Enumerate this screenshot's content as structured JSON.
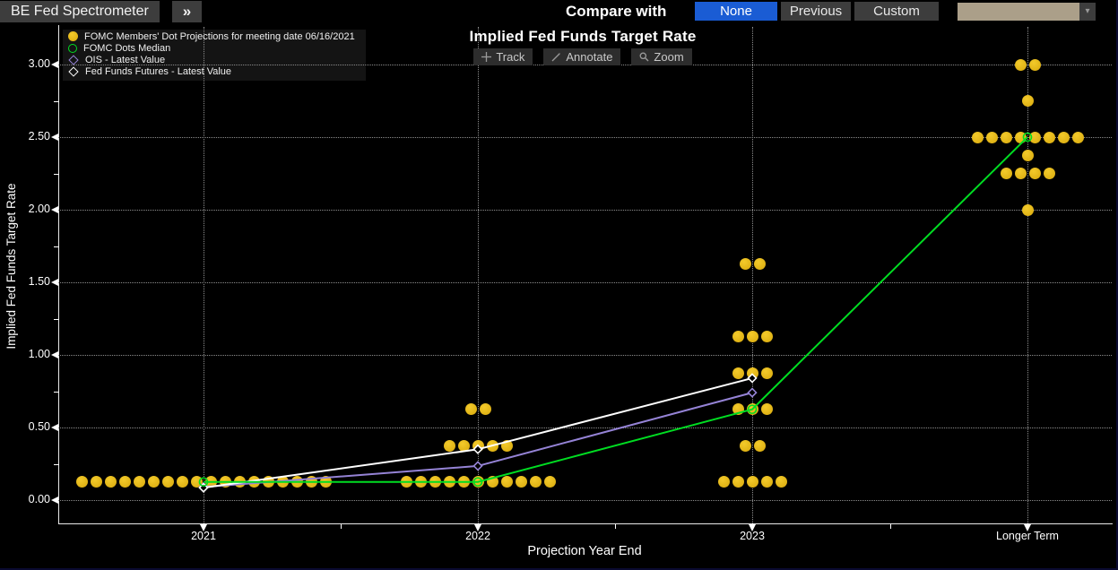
{
  "top_bar": {
    "app_title": "BE Fed Spectrometer",
    "expand_label": "»",
    "compare_with_label": "Compare with",
    "compare_options": [
      {
        "label": "None",
        "active": true
      },
      {
        "label": "Previous",
        "active": false
      },
      {
        "label": "Custom",
        "active": false
      }
    ],
    "dropdown_value": "",
    "accent_blue": "#1a5cd4",
    "dropdown_tan": "#ab9f89"
  },
  "chart": {
    "title": "Implied Fed Funds Target Rate",
    "toolbar": [
      {
        "icon": "track-icon",
        "label": "Track"
      },
      {
        "icon": "annotate-icon",
        "label": "Annotate"
      },
      {
        "icon": "zoom-icon",
        "label": "Zoom"
      }
    ],
    "xlabel": "Projection Year End",
    "ylabel": "Implied Fed Funds Target Rate"
  },
  "legend": [
    {
      "marker": "filled-circle",
      "color": "#e3b71c",
      "label": "FOMC Members' Dot Projections for meeting date 06/16/2021"
    },
    {
      "marker": "open-circle",
      "color": "#00dd22",
      "label": "FOMC Dots Median"
    },
    {
      "marker": "open-diamond",
      "color": "#9583d6",
      "label": "OIS - Latest Value"
    },
    {
      "marker": "open-diamond",
      "color": "#ffffff",
      "label": "Fed Funds Futures - Latest Value"
    }
  ],
  "chart_data": {
    "type": "scatter",
    "title": "Implied Fed Funds Target Rate",
    "xlabel": "Projection Year End",
    "ylabel": "Implied Fed Funds Target Rate",
    "categories": [
      "2021",
      "2022",
      "2023",
      "Longer Term"
    ],
    "ylim": [
      0.0,
      3.0
    ],
    "ytick_step": 0.5,
    "y_tick_labels": [
      "0.00",
      "0.50",
      "1.00",
      "1.50",
      "2.00",
      "2.50",
      "3.00"
    ],
    "grid": true,
    "legend_position": "top-left",
    "dot_series": {
      "name": "FOMC Members' Dot Projections for meeting date 06/16/2021",
      "color": "#e3b71c",
      "points_by_category": {
        "2021": [
          {
            "value": 0.125,
            "count": 18
          }
        ],
        "2022": [
          {
            "value": 0.125,
            "count": 11
          },
          {
            "value": 0.375,
            "count": 5
          },
          {
            "value": 0.625,
            "count": 2
          }
        ],
        "2023": [
          {
            "value": 0.125,
            "count": 5
          },
          {
            "value": 0.375,
            "count": 2
          },
          {
            "value": 0.625,
            "count": 3
          },
          {
            "value": 0.875,
            "count": 3
          },
          {
            "value": 1.125,
            "count": 3
          },
          {
            "value": 1.625,
            "count": 2
          }
        ],
        "Longer Term": [
          {
            "value": 2.0,
            "count": 1
          },
          {
            "value": 2.25,
            "count": 4
          },
          {
            "value": 2.375,
            "count": 1
          },
          {
            "value": 2.5,
            "count": 8
          },
          {
            "value": 2.75,
            "count": 1
          },
          {
            "value": 3.0,
            "count": 2
          }
        ]
      }
    },
    "series": [
      {
        "name": "FOMC Dots Median",
        "color": "#00dd22",
        "marker": "open-circle",
        "x": [
          "2021",
          "2022",
          "2023",
          "Longer Term"
        ],
        "values": [
          0.125,
          0.125,
          0.625,
          2.5
        ]
      },
      {
        "name": "OIS - Latest Value",
        "color": "#9583d6",
        "marker": "open-diamond",
        "x": [
          "2021",
          "2022",
          "2023"
        ],
        "values": [
          0.09,
          0.235,
          0.74
        ]
      },
      {
        "name": "Fed Funds Futures - Latest Value",
        "color": "#ffffff",
        "marker": "open-diamond",
        "x": [
          "2021",
          "2022",
          "2023"
        ],
        "values": [
          0.085,
          0.35,
          0.84
        ]
      }
    ]
  }
}
